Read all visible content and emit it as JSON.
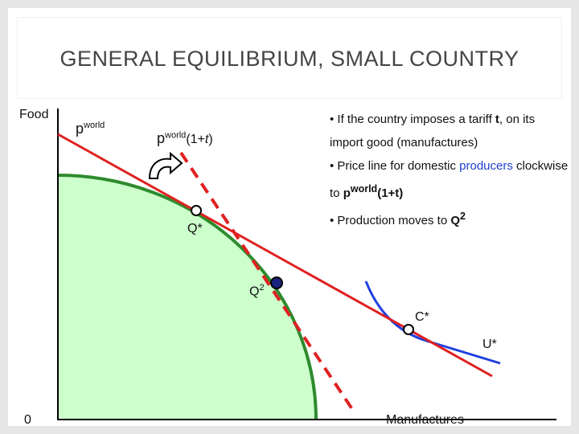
{
  "title": "GENERAL EQUILIBRIUM, SMALL COUNTRY",
  "axes": {
    "y_label": "Food",
    "x_label": "Manufactures",
    "origin": "0"
  },
  "price_labels": {
    "world": {
      "base": "p",
      "sup": "world"
    },
    "tariff": {
      "base": "p",
      "sup": "world",
      "open": "(1+",
      "t": "t",
      "close": ")"
    }
  },
  "points": {
    "q_star": "Q*",
    "q2": {
      "base": "Q",
      "sup": "2"
    },
    "c_star": "C*",
    "u_star": "U*"
  },
  "bullets": [
    {
      "text": "• If the country imposes a tariff ",
      "bold": "t",
      "rest": ", on its import good (manufactures)"
    },
    {
      "text": "• Price line for domestic ",
      "colored": "producers",
      "mid": " clockwise to ",
      "bold_base": "p",
      "bold_sup": "world",
      "bold_rest": "(1+t)"
    },
    {
      "text": "• Production moves to ",
      "bold_base": "Q",
      "bold_sup": "2"
    }
  ]
}
